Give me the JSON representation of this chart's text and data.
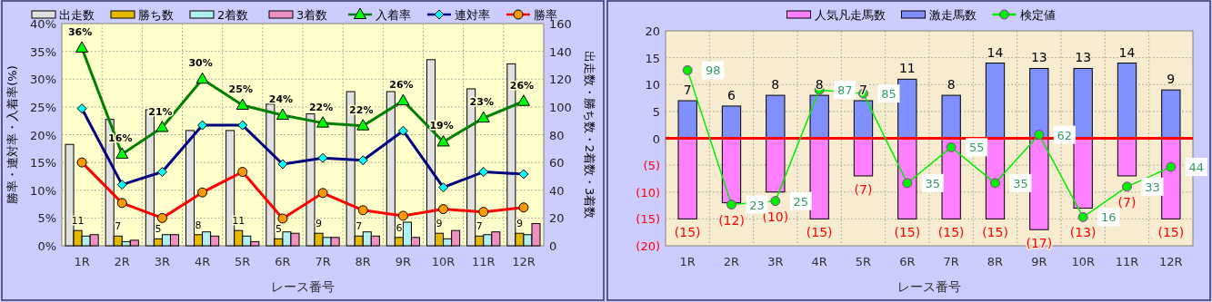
{
  "chart_data": [
    {
      "type": "bar",
      "legend": "top",
      "grid": true,
      "categories": [
        "1R",
        "2R",
        "3R",
        "4R",
        "5R",
        "6R",
        "7R",
        "8R",
        "9R",
        "10R",
        "11R",
        "12R"
      ],
      "xlabel": "レース番号",
      "ylabel": "勝率・連対率・入着率(%)",
      "y2label": "出走数・勝ち数・2着数・3着数",
      "ylim": [
        0,
        40
      ],
      "yticks": [
        {
          "value": 0,
          "label": "0%"
        },
        {
          "value": 5,
          "label": "5%"
        },
        {
          "value": 10,
          "label": "10%"
        },
        {
          "value": 15,
          "label": "15%"
        },
        {
          "value": 20,
          "label": "20%"
        },
        {
          "value": 25,
          "label": "25%"
        },
        {
          "value": 30,
          "label": "30%"
        },
        {
          "value": 35,
          "label": "35%"
        },
        {
          "value": 40,
          "label": "40%"
        }
      ],
      "y2lim": [
        0,
        160
      ],
      "y2ticks": [
        0,
        20,
        40,
        60,
        80,
        100,
        120,
        140,
        160
      ],
      "series": [
        {
          "name": "出走数",
          "color": "#e0e0e0",
          "axis": "y2",
          "values": [
            73,
            91,
            98,
            83,
            83,
            102,
            95,
            111,
            111,
            134,
            113,
            131
          ]
        },
        {
          "name": "勝ち数",
          "color": "#e6b800",
          "axis": "y2",
          "values": [
            11,
            7,
            5,
            8,
            11,
            5,
            9,
            7,
            6,
            9,
            7,
            9
          ],
          "value_labels": [
            "11",
            "7",
            "5",
            "8",
            "11",
            "5",
            "9",
            "7",
            "6",
            "9",
            "7",
            "9"
          ]
        },
        {
          "name": "2着数",
          "color": "#b0f0f0",
          "axis": "y2",
          "values": [
            7,
            3,
            8,
            10,
            7,
            10,
            6,
            10,
            17,
            5,
            8,
            8
          ]
        },
        {
          "name": "3着数",
          "color": "#f090c0",
          "axis": "y2",
          "values": [
            8,
            4,
            8,
            7,
            3,
            9,
            6,
            7,
            6,
            11,
            10,
            16
          ]
        },
        {
          "name": "入着率",
          "type": "line",
          "color": "#008000",
          "marker": "triangle",
          "values": [
            35.6,
            16.5,
            21.3,
            30,
            25.3,
            23.5,
            22.1,
            21.6,
            26.1,
            18.7,
            23,
            26
          ],
          "value_labels": [
            "36%",
            "16%",
            "21%",
            "30%",
            "25%",
            "24%",
            "22%",
            "22%",
            "26%",
            "19%",
            "23%",
            "26%"
          ]
        },
        {
          "name": "連対率",
          "type": "line",
          "color": "#000080",
          "marker": "diamond",
          "values": [
            24.7,
            11,
            13.3,
            21.7,
            21.7,
            14.7,
            15.8,
            15.4,
            20.7,
            10.5,
            13.3,
            12.9
          ]
        },
        {
          "name": "勝率",
          "type": "line",
          "color": "#ff0000",
          "marker": "circle",
          "values": [
            15,
            7.7,
            5,
            9.6,
            13.3,
            4.9,
            9.5,
            6.4,
            5.4,
            6.6,
            6.1,
            6.9
          ]
        }
      ]
    },
    {
      "type": "bar",
      "stacked": true,
      "legend": "top",
      "grid": true,
      "categories": [
        "1R",
        "2R",
        "3R",
        "4R",
        "5R",
        "6R",
        "7R",
        "8R",
        "9R",
        "10R",
        "11R",
        "12R"
      ],
      "xlabel": "レース番号",
      "ylim": [
        -20,
        20
      ],
      "yticks": [
        {
          "value": -20,
          "label": "(20)"
        },
        {
          "value": -15,
          "label": "(15)"
        },
        {
          "value": -10,
          "label": "(10)"
        },
        {
          "value": -5,
          "label": "(5)"
        },
        0,
        5,
        10,
        15,
        20
      ],
      "ref_lines": [
        {
          "axis": "y",
          "value": 0,
          "color": "#ff0000"
        }
      ],
      "series": [
        {
          "name": "人気凡走馬数",
          "color": "#ff80ff",
          "values": [
            -15,
            -12,
            -10,
            -15,
            -7,
            -15,
            -15,
            -15,
            -17,
            -13,
            -7,
            -15
          ],
          "value_labels": [
            "(15)",
            "(12)",
            "(10)",
            "(15)",
            "(7)",
            "(15)",
            "(15)",
            "(15)",
            "(17)",
            "(13)",
            "(7)",
            "(15)"
          ]
        },
        {
          "name": "激走馬数",
          "color": "#8090ff",
          "values": [
            7,
            6,
            8,
            8,
            7,
            11,
            8,
            14,
            13,
            13,
            14,
            9
          ],
          "value_labels": [
            "7",
            "6",
            "8",
            "8",
            "7",
            "11",
            "8",
            "14",
            "13",
            "13",
            "14",
            "9"
          ]
        },
        {
          "name": "検定値",
          "type": "line",
          "axis": "y2",
          "color": "#00ee00",
          "marker": "circle",
          "values": [
            98,
            23,
            25,
            87,
            85,
            35,
            55,
            35,
            62,
            16,
            33,
            44
          ],
          "value_labels": [
            "98",
            "23",
            "25",
            "87",
            "85",
            "35",
            "55",
            "35",
            "62",
            "16",
            "33",
            "44"
          ]
        }
      ],
      "y2lim": [
        0,
        120
      ]
    }
  ]
}
